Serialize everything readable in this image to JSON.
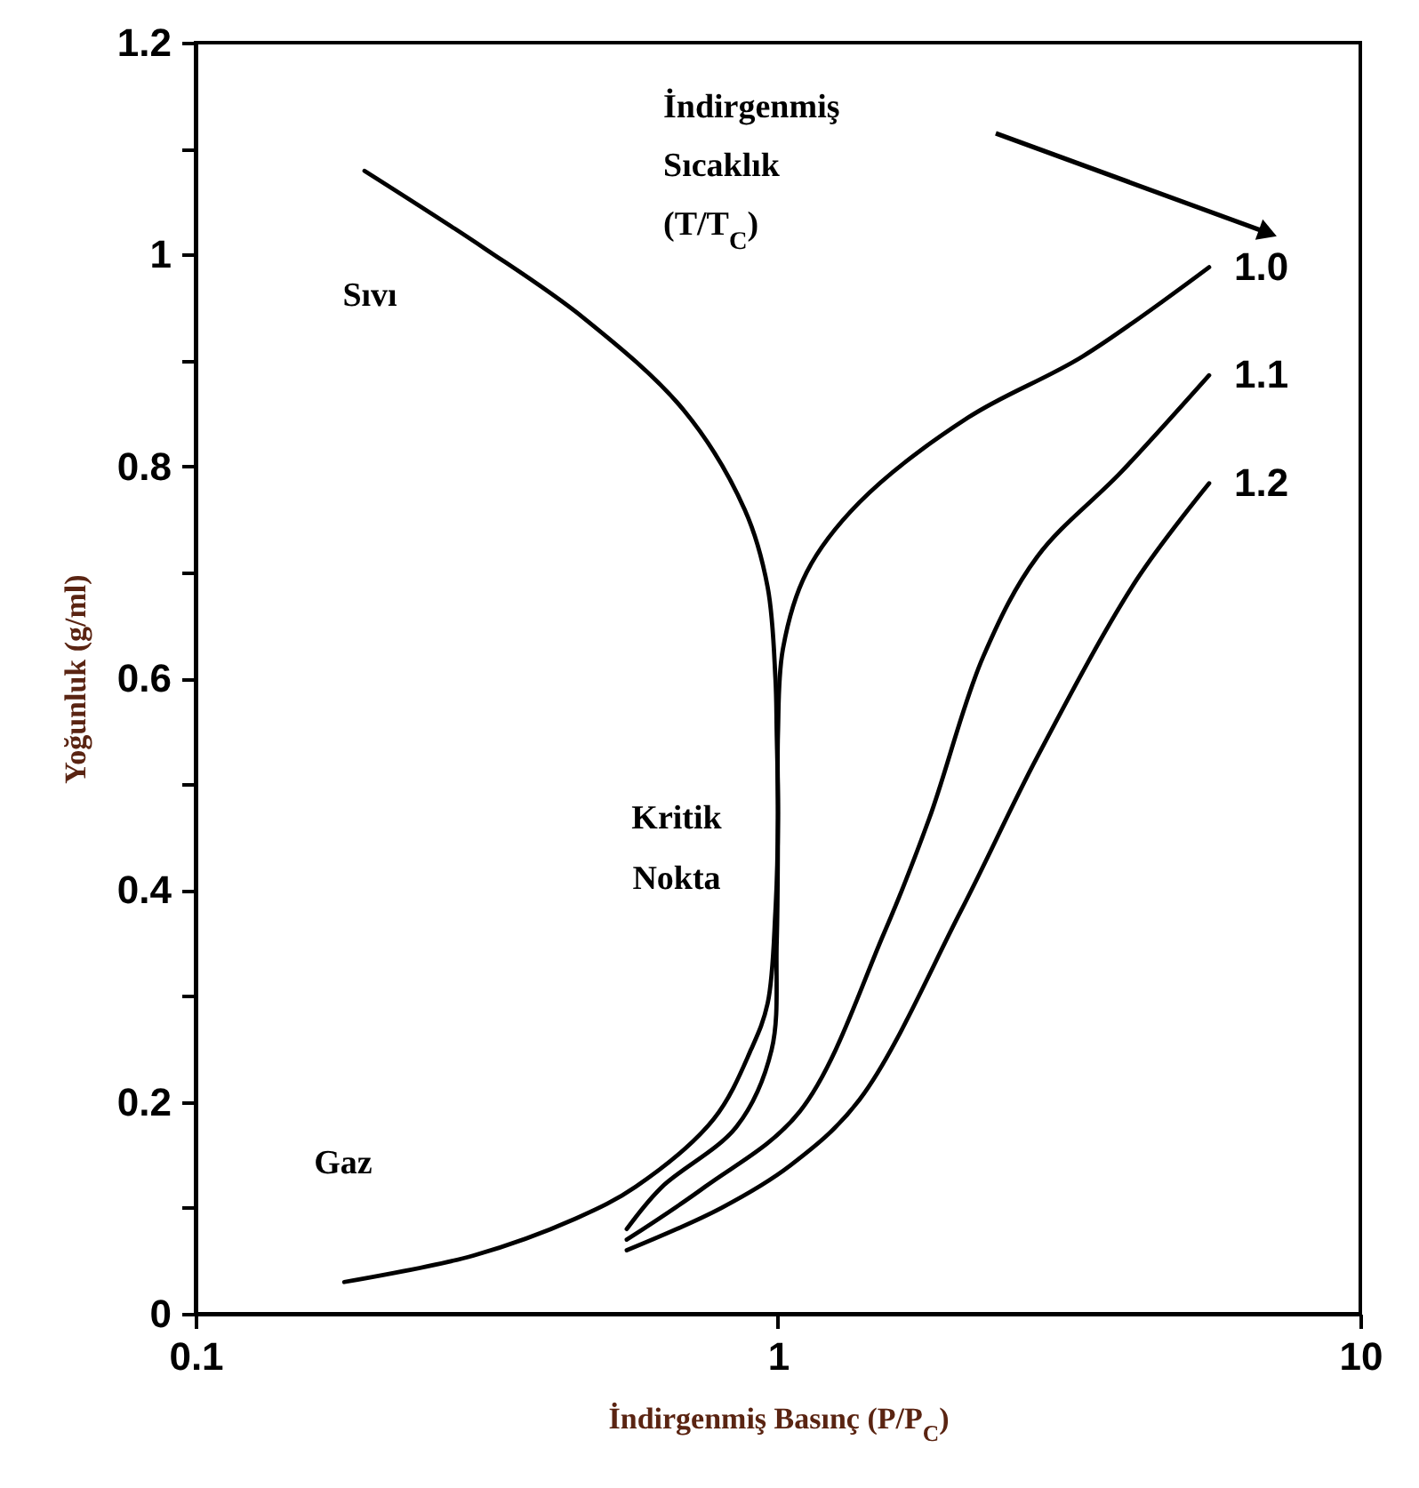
{
  "chart_data": {
    "type": "line",
    "xlabel": "İndirgenmiş Basınç (P/P$_{C}$)",
    "ylabel": "Yoğunluk (g/ml)",
    "log": "x",
    "xlim": [
      0.1,
      10
    ],
    "xticks": [
      0.1,
      1,
      10
    ],
    "ylim": [
      0,
      1.2
    ],
    "yticks": [
      0,
      {
        "value": 0.1,
        "label": null
      },
      0.2,
      {
        "value": 0.3,
        "label": null
      },
      0.4,
      {
        "value": 0.5,
        "label": null
      },
      0.6,
      {
        "value": 0.7,
        "label": null
      },
      0.8,
      {
        "value": 0.9,
        "label": null
      },
      1,
      {
        "value": 1.1,
        "label": null
      },
      1.2
    ],
    "grid": false,
    "legend": "right",
    "series": [
      {
        "color": "#000000",
        "x": [
          0.195,
          0.313,
          0.464,
          0.689,
          0.877,
          0.96,
          0.99,
          0.995,
          1.0,
          0.99,
          0.96,
          0.9,
          0.776,
          0.57,
          0.45,
          0.3,
          0.18
        ],
        "values": [
          1.079,
          1.006,
          0.94,
          0.853,
          0.759,
          0.686,
          0.6,
          0.55,
          0.468,
          0.38,
          0.293,
          0.25,
          0.184,
          0.12,
          0.09,
          0.055,
          0.03
        ]
      },
      {
        "name": "1.0",
        "color": "#000000",
        "x": [
          0.55,
          0.63,
          0.85,
          0.975,
          0.995,
          1.0,
          1.0,
          1.02,
          1.12,
          1.38,
          2.12,
          3.34,
          5.5
        ],
        "values": [
          0.08,
          0.119,
          0.177,
          0.249,
          0.35,
          0.468,
          0.548,
          0.628,
          0.7,
          0.766,
          0.846,
          0.904,
          0.988
        ]
      },
      {
        "name": "1.1",
        "color": "#000000",
        "x": [
          0.55,
          0.75,
          1.09,
          1.52,
          1.82,
          2.25,
          2.79,
          3.89,
          5.5
        ],
        "values": [
          0.07,
          0.12,
          0.191,
          0.359,
          0.468,
          0.62,
          0.715,
          0.795,
          0.886
        ]
      },
      {
        "name": "1.2",
        "color": "#000000",
        "x": [
          0.55,
          0.8,
          1.05,
          1.38,
          2.06,
          2.79,
          4.13,
          5.5
        ],
        "values": [
          0.06,
          0.1,
          0.14,
          0.202,
          0.38,
          0.526,
          0.693,
          0.784
        ]
      }
    ],
    "annotations": [
      "İndirgenmiş Sıcaklık (T/T$_{C}$)",
      "Sıvı",
      "Gaz",
      {
        "text": "Kritik Nokta",
        "x": 1.0,
        "y": 0.468
      }
    ]
  }
}
